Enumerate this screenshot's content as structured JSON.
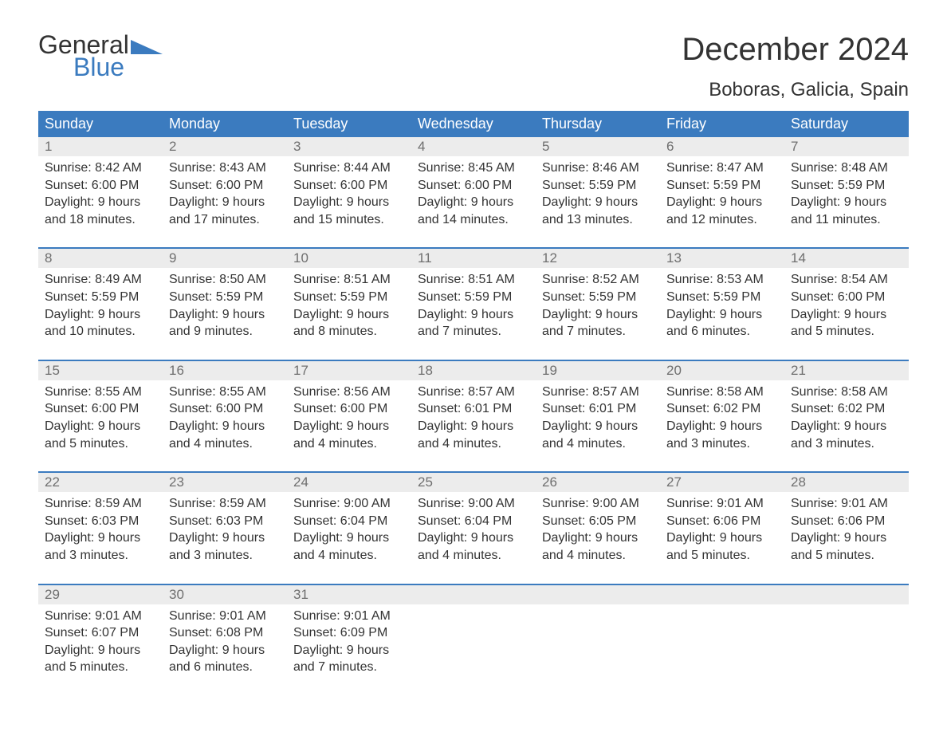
{
  "brand": {
    "general": "General",
    "blue": "Blue"
  },
  "title": "December 2024",
  "location": "Boboras, Galicia, Spain",
  "colors": {
    "header_bg": "#3b7bbf",
    "header_text": "#ffffff",
    "daynum_bg": "#ececec",
    "daynum_text": "#6f6f6f",
    "body_text": "#333333",
    "logo_blue": "#3b7bbf",
    "logo_dark": "#333333",
    "page_bg": "#ffffff"
  },
  "typography": {
    "title_fontsize": 40,
    "location_fontsize": 24,
    "dayhead_fontsize": 18,
    "daynum_fontsize": 17,
    "body_fontsize": 16
  },
  "day_names": [
    "Sunday",
    "Monday",
    "Tuesday",
    "Wednesday",
    "Thursday",
    "Friday",
    "Saturday"
  ],
  "weeks": [
    [
      {
        "num": "1",
        "sunrise": "Sunrise: 8:42 AM",
        "sunset": "Sunset: 6:00 PM",
        "d1": "Daylight: 9 hours",
        "d2": "and 18 minutes."
      },
      {
        "num": "2",
        "sunrise": "Sunrise: 8:43 AM",
        "sunset": "Sunset: 6:00 PM",
        "d1": "Daylight: 9 hours",
        "d2": "and 17 minutes."
      },
      {
        "num": "3",
        "sunrise": "Sunrise: 8:44 AM",
        "sunset": "Sunset: 6:00 PM",
        "d1": "Daylight: 9 hours",
        "d2": "and 15 minutes."
      },
      {
        "num": "4",
        "sunrise": "Sunrise: 8:45 AM",
        "sunset": "Sunset: 6:00 PM",
        "d1": "Daylight: 9 hours",
        "d2": "and 14 minutes."
      },
      {
        "num": "5",
        "sunrise": "Sunrise: 8:46 AM",
        "sunset": "Sunset: 5:59 PM",
        "d1": "Daylight: 9 hours",
        "d2": "and 13 minutes."
      },
      {
        "num": "6",
        "sunrise": "Sunrise: 8:47 AM",
        "sunset": "Sunset: 5:59 PM",
        "d1": "Daylight: 9 hours",
        "d2": "and 12 minutes."
      },
      {
        "num": "7",
        "sunrise": "Sunrise: 8:48 AM",
        "sunset": "Sunset: 5:59 PM",
        "d1": "Daylight: 9 hours",
        "d2": "and 11 minutes."
      }
    ],
    [
      {
        "num": "8",
        "sunrise": "Sunrise: 8:49 AM",
        "sunset": "Sunset: 5:59 PM",
        "d1": "Daylight: 9 hours",
        "d2": "and 10 minutes."
      },
      {
        "num": "9",
        "sunrise": "Sunrise: 8:50 AM",
        "sunset": "Sunset: 5:59 PM",
        "d1": "Daylight: 9 hours",
        "d2": "and 9 minutes."
      },
      {
        "num": "10",
        "sunrise": "Sunrise: 8:51 AM",
        "sunset": "Sunset: 5:59 PM",
        "d1": "Daylight: 9 hours",
        "d2": "and 8 minutes."
      },
      {
        "num": "11",
        "sunrise": "Sunrise: 8:51 AM",
        "sunset": "Sunset: 5:59 PM",
        "d1": "Daylight: 9 hours",
        "d2": "and 7 minutes."
      },
      {
        "num": "12",
        "sunrise": "Sunrise: 8:52 AM",
        "sunset": "Sunset: 5:59 PM",
        "d1": "Daylight: 9 hours",
        "d2": "and 7 minutes."
      },
      {
        "num": "13",
        "sunrise": "Sunrise: 8:53 AM",
        "sunset": "Sunset: 5:59 PM",
        "d1": "Daylight: 9 hours",
        "d2": "and 6 minutes."
      },
      {
        "num": "14",
        "sunrise": "Sunrise: 8:54 AM",
        "sunset": "Sunset: 6:00 PM",
        "d1": "Daylight: 9 hours",
        "d2": "and 5 minutes."
      }
    ],
    [
      {
        "num": "15",
        "sunrise": "Sunrise: 8:55 AM",
        "sunset": "Sunset: 6:00 PM",
        "d1": "Daylight: 9 hours",
        "d2": "and 5 minutes."
      },
      {
        "num": "16",
        "sunrise": "Sunrise: 8:55 AM",
        "sunset": "Sunset: 6:00 PM",
        "d1": "Daylight: 9 hours",
        "d2": "and 4 minutes."
      },
      {
        "num": "17",
        "sunrise": "Sunrise: 8:56 AM",
        "sunset": "Sunset: 6:00 PM",
        "d1": "Daylight: 9 hours",
        "d2": "and 4 minutes."
      },
      {
        "num": "18",
        "sunrise": "Sunrise: 8:57 AM",
        "sunset": "Sunset: 6:01 PM",
        "d1": "Daylight: 9 hours",
        "d2": "and 4 minutes."
      },
      {
        "num": "19",
        "sunrise": "Sunrise: 8:57 AM",
        "sunset": "Sunset: 6:01 PM",
        "d1": "Daylight: 9 hours",
        "d2": "and 4 minutes."
      },
      {
        "num": "20",
        "sunrise": "Sunrise: 8:58 AM",
        "sunset": "Sunset: 6:02 PM",
        "d1": "Daylight: 9 hours",
        "d2": "and 3 minutes."
      },
      {
        "num": "21",
        "sunrise": "Sunrise: 8:58 AM",
        "sunset": "Sunset: 6:02 PM",
        "d1": "Daylight: 9 hours",
        "d2": "and 3 minutes."
      }
    ],
    [
      {
        "num": "22",
        "sunrise": "Sunrise: 8:59 AM",
        "sunset": "Sunset: 6:03 PM",
        "d1": "Daylight: 9 hours",
        "d2": "and 3 minutes."
      },
      {
        "num": "23",
        "sunrise": "Sunrise: 8:59 AM",
        "sunset": "Sunset: 6:03 PM",
        "d1": "Daylight: 9 hours",
        "d2": "and 3 minutes."
      },
      {
        "num": "24",
        "sunrise": "Sunrise: 9:00 AM",
        "sunset": "Sunset: 6:04 PM",
        "d1": "Daylight: 9 hours",
        "d2": "and 4 minutes."
      },
      {
        "num": "25",
        "sunrise": "Sunrise: 9:00 AM",
        "sunset": "Sunset: 6:04 PM",
        "d1": "Daylight: 9 hours",
        "d2": "and 4 minutes."
      },
      {
        "num": "26",
        "sunrise": "Sunrise: 9:00 AM",
        "sunset": "Sunset: 6:05 PM",
        "d1": "Daylight: 9 hours",
        "d2": "and 4 minutes."
      },
      {
        "num": "27",
        "sunrise": "Sunrise: 9:01 AM",
        "sunset": "Sunset: 6:06 PM",
        "d1": "Daylight: 9 hours",
        "d2": "and 5 minutes."
      },
      {
        "num": "28",
        "sunrise": "Sunrise: 9:01 AM",
        "sunset": "Sunset: 6:06 PM",
        "d1": "Daylight: 9 hours",
        "d2": "and 5 minutes."
      }
    ],
    [
      {
        "num": "29",
        "sunrise": "Sunrise: 9:01 AM",
        "sunset": "Sunset: 6:07 PM",
        "d1": "Daylight: 9 hours",
        "d2": "and 5 minutes."
      },
      {
        "num": "30",
        "sunrise": "Sunrise: 9:01 AM",
        "sunset": "Sunset: 6:08 PM",
        "d1": "Daylight: 9 hours",
        "d2": "and 6 minutes."
      },
      {
        "num": "31",
        "sunrise": "Sunrise: 9:01 AM",
        "sunset": "Sunset: 6:09 PM",
        "d1": "Daylight: 9 hours",
        "d2": "and 7 minutes."
      },
      null,
      null,
      null,
      null
    ]
  ]
}
